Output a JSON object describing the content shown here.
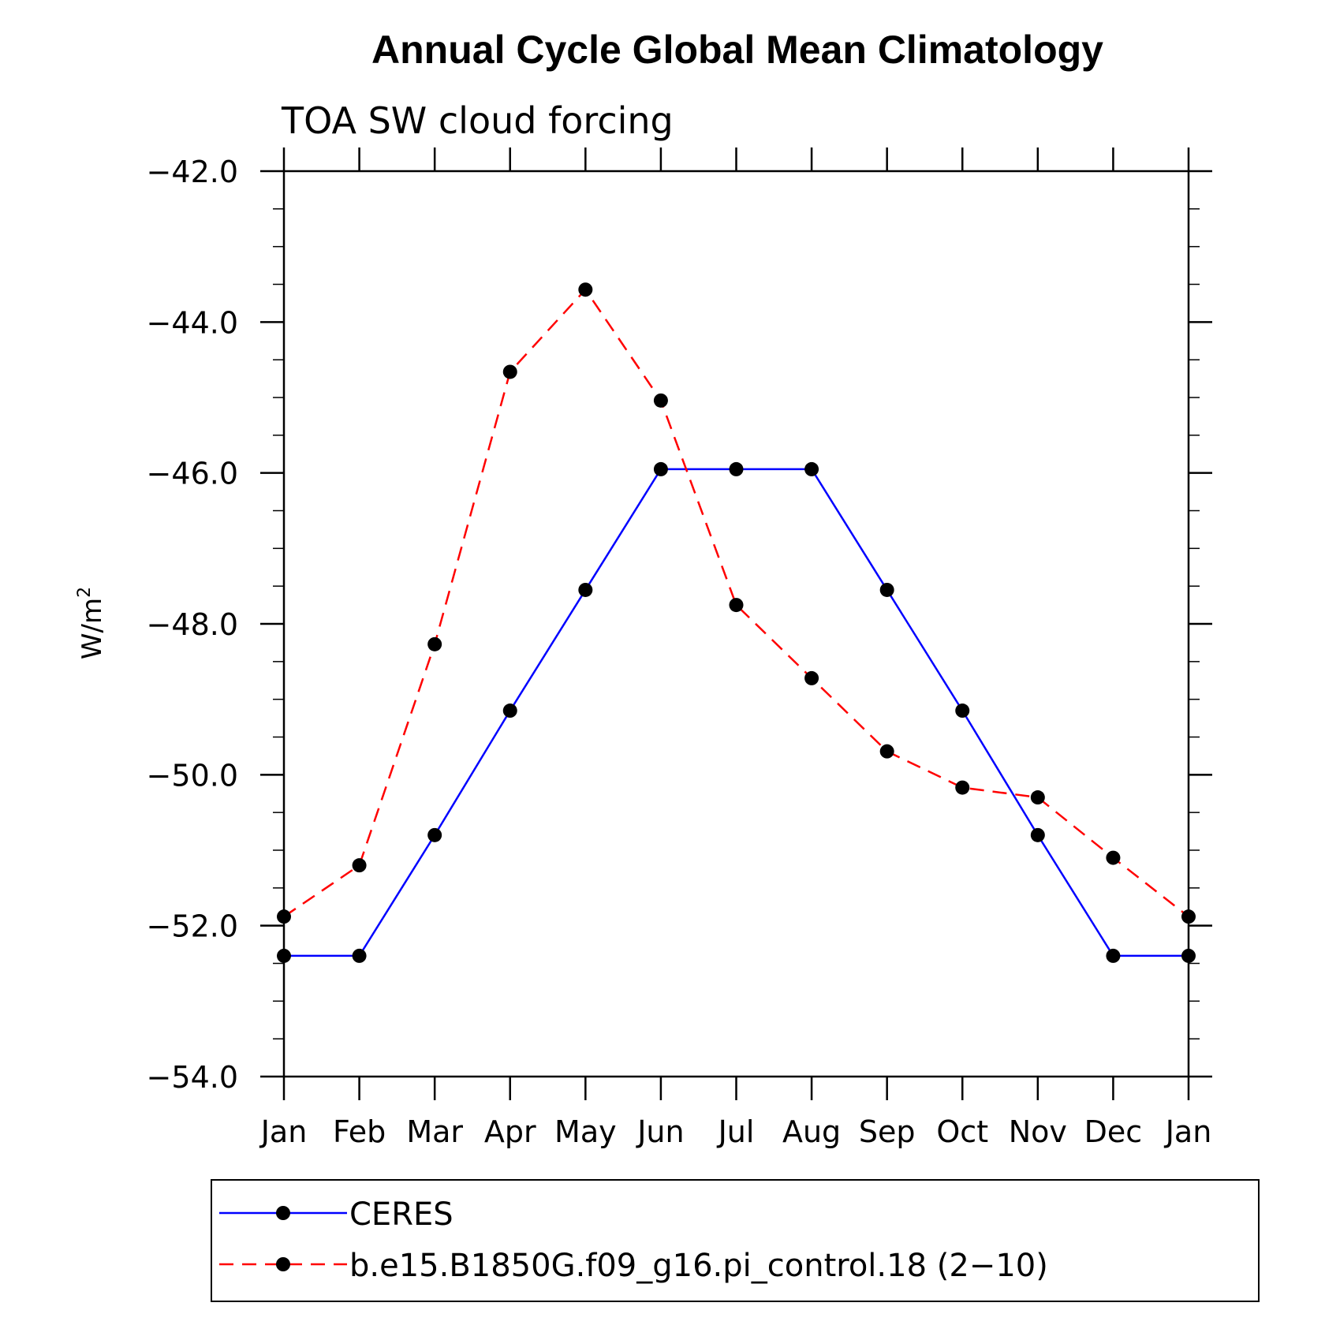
{
  "chart_data": {
    "type": "line",
    "title": "Annual Cycle Global Mean Climatology",
    "subtitle": "TOA SW cloud forcing",
    "ylabel": "W/m",
    "ylabel_sup": "2",
    "xlabel": "",
    "categories": [
      "Jan",
      "Feb",
      "Mar",
      "Apr",
      "May",
      "Jun",
      "Jul",
      "Aug",
      "Sep",
      "Oct",
      "Nov",
      "Dec",
      "Jan"
    ],
    "ylim": [
      -54.0,
      -42.0
    ],
    "yticks": [
      -54.0,
      -52.0,
      -50.0,
      -48.0,
      -46.0,
      -44.0,
      -42.0
    ],
    "ytick_labels": [
      "−54.0",
      "−52.0",
      "−50.0",
      "−48.0",
      "−46.0",
      "−44.0",
      "−42.0"
    ],
    "grid": false,
    "legend_position": "bottom",
    "series": [
      {
        "name": "CERES",
        "color": "#0000ff",
        "dash": "solid",
        "values": [
          -52.4,
          -52.4,
          -50.8,
          -49.15,
          -47.55,
          -45.95,
          -45.95,
          -45.95,
          -47.55,
          -49.15,
          -50.8,
          -52.4,
          -52.4
        ]
      },
      {
        "name": "b.e15.B1850G.f09_g16.pi_control.18 (2−10)",
        "color": "#ff0000",
        "dash": "dashed",
        "values": [
          -51.88,
          -51.2,
          -48.27,
          -44.66,
          -43.57,
          -45.04,
          -47.75,
          -48.72,
          -49.69,
          -50.17,
          -50.3,
          -51.1,
          -51.88
        ]
      }
    ]
  }
}
